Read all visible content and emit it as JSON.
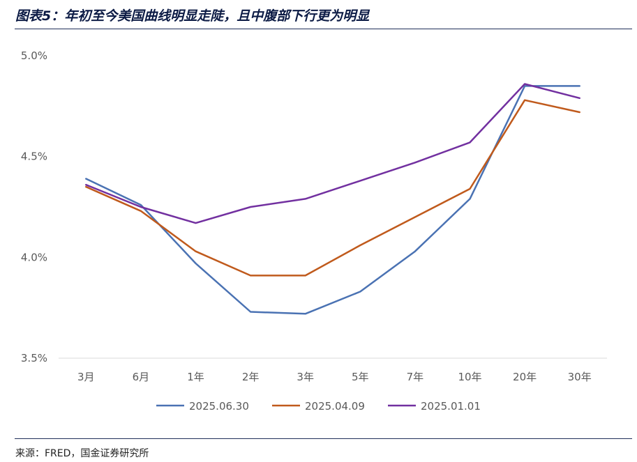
{
  "title": "图表5：年初至今美国曲线明显走陡，且中腹部下行更为明显",
  "source": "来源：FRED，国金证券研究所",
  "chart_data": {
    "type": "line",
    "title": "图表5：年初至今美国曲线明显走陡，且中腹部下行更为明显",
    "categories": [
      "3月",
      "6月",
      "1年",
      "2年",
      "3年",
      "5年",
      "7年",
      "10年",
      "20年",
      "30年"
    ],
    "ylim": [
      3.5,
      5.0
    ],
    "y_ticks": [
      "3.5%",
      "4.0%",
      "4.5%",
      "5.0%"
    ],
    "y_tick_values": [
      3.5,
      4.0,
      4.5,
      5.0
    ],
    "grid": false,
    "legend_position": "bottom",
    "series": [
      {
        "name": "2025.06.30",
        "color": "#4a72b3",
        "values": [
          4.39,
          4.26,
          3.97,
          3.73,
          3.72,
          3.83,
          4.03,
          4.29,
          4.85,
          4.85
        ]
      },
      {
        "name": "2025.04.09",
        "color": "#c05a1c",
        "values": [
          4.35,
          4.23,
          4.03,
          3.91,
          3.91,
          4.06,
          4.2,
          4.34,
          4.78,
          4.72
        ]
      },
      {
        "name": "2025.01.01",
        "color": "#7230a0",
        "values": [
          4.36,
          4.25,
          4.17,
          4.25,
          4.29,
          4.38,
          4.47,
          4.57,
          4.86,
          4.79
        ]
      }
    ]
  }
}
